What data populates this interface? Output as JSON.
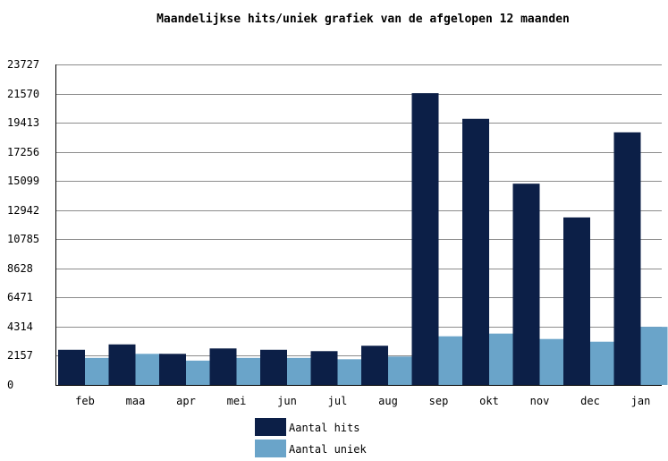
{
  "chart_data": {
    "type": "bar",
    "title": "Maandelijkse hits/uniek grafiek van de afgelopen 12 maanden",
    "xlabel": "",
    "ylabel": "",
    "categories": [
      "feb",
      "maa",
      "apr",
      "mei",
      "jun",
      "jul",
      "aug",
      "sep",
      "okt",
      "nov",
      "dec",
      "jan"
    ],
    "series": [
      {
        "name": "Aantal hits",
        "color": "#0c1f47",
        "values": [
          2600,
          3000,
          2300,
          2700,
          2600,
          2500,
          2900,
          21600,
          19700,
          14900,
          12400,
          18700
        ]
      },
      {
        "name": "Aantal uniek",
        "color": "#6aa4c9",
        "values": [
          2000,
          2300,
          1800,
          2000,
          2000,
          1900,
          2100,
          3600,
          3800,
          3400,
          3200,
          4300
        ]
      }
    ],
    "yticks": [
      "0",
      "2157",
      "4314",
      "6471",
      "8628",
      "10785",
      "12942",
      "15099",
      "17256",
      "19413",
      "21570",
      "23727"
    ],
    "ylim": [
      0,
      23727
    ],
    "grid": true,
    "legend": "bottom-center"
  }
}
